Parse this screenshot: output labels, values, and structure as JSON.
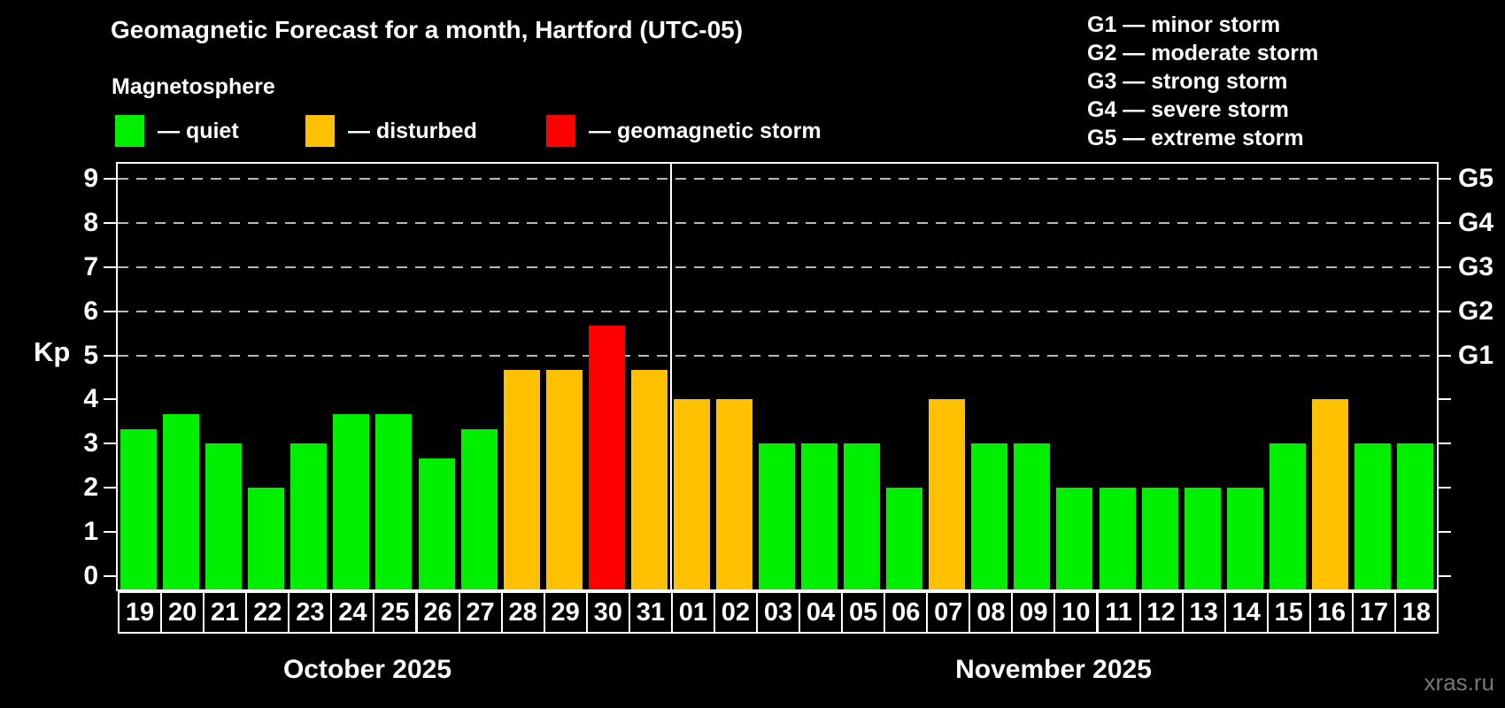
{
  "subtitle": "Magnetosphere",
  "legend": {
    "items": [
      {
        "id": "quiet",
        "label": "— quiet",
        "color": "#00f000"
      },
      {
        "id": "disturbed",
        "label": "— disturbed",
        "color": "#ffc000"
      },
      {
        "id": "storm",
        "label": "— geomagnetic storm",
        "color": "#ff0000"
      }
    ]
  },
  "g_legend": [
    "G1 — minor storm",
    "G2 — moderate storm",
    "G3 — strong storm",
    "G4 — severe storm",
    "G5 — extreme storm"
  ],
  "watermark": "xras.ru",
  "chart_data": {
    "type": "bar",
    "title": "Geomagnetic Forecast for a month, Hartford (UTC-05)",
    "ylabel": "Kp",
    "ylim": [
      0,
      9
    ],
    "y_ticks": [
      0,
      1,
      2,
      3,
      4,
      5,
      6,
      7,
      8,
      9
    ],
    "grid_levels": [
      5,
      6,
      7,
      8,
      9
    ],
    "grid_style": "dashed",
    "legend_position": "top-left",
    "g_scale": [
      {
        "label": "G1",
        "kp": 5
      },
      {
        "label": "G2",
        "kp": 6
      },
      {
        "label": "G3",
        "kp": 7
      },
      {
        "label": "G4",
        "kp": 8
      },
      {
        "label": "G5",
        "kp": 9
      }
    ],
    "status_colors": {
      "quiet": "#00f000",
      "disturbed": "#ffc000",
      "storm": "#ff0000"
    },
    "months": [
      {
        "label": "October 2025",
        "days": [
          {
            "day": "19",
            "kp": 3.33,
            "status": "quiet"
          },
          {
            "day": "20",
            "kp": 3.67,
            "status": "quiet"
          },
          {
            "day": "21",
            "kp": 3.0,
            "status": "quiet"
          },
          {
            "day": "22",
            "kp": 2.0,
            "status": "quiet"
          },
          {
            "day": "23",
            "kp": 3.0,
            "status": "quiet"
          },
          {
            "day": "24",
            "kp": 3.67,
            "status": "quiet"
          },
          {
            "day": "25",
            "kp": 3.67,
            "status": "quiet"
          },
          {
            "day": "26",
            "kp": 2.67,
            "status": "quiet"
          },
          {
            "day": "27",
            "kp": 3.33,
            "status": "quiet"
          },
          {
            "day": "28",
            "kp": 4.67,
            "status": "disturbed"
          },
          {
            "day": "29",
            "kp": 4.67,
            "status": "disturbed"
          },
          {
            "day": "30",
            "kp": 5.67,
            "status": "storm"
          },
          {
            "day": "31",
            "kp": 4.67,
            "status": "disturbed"
          }
        ]
      },
      {
        "label": "November 2025",
        "days": [
          {
            "day": "01",
            "kp": 4.0,
            "status": "disturbed"
          },
          {
            "day": "02",
            "kp": 4.0,
            "status": "disturbed"
          },
          {
            "day": "03",
            "kp": 3.0,
            "status": "quiet"
          },
          {
            "day": "04",
            "kp": 3.0,
            "status": "quiet"
          },
          {
            "day": "05",
            "kp": 3.0,
            "status": "quiet"
          },
          {
            "day": "06",
            "kp": 2.0,
            "status": "quiet"
          },
          {
            "day": "07",
            "kp": 4.0,
            "status": "disturbed"
          },
          {
            "day": "08",
            "kp": 3.0,
            "status": "quiet"
          },
          {
            "day": "09",
            "kp": 3.0,
            "status": "quiet"
          },
          {
            "day": "10",
            "kp": 2.0,
            "status": "quiet"
          },
          {
            "day": "11",
            "kp": 2.0,
            "status": "quiet"
          },
          {
            "day": "12",
            "kp": 2.0,
            "status": "quiet"
          },
          {
            "day": "13",
            "kp": 2.0,
            "status": "quiet"
          },
          {
            "day": "14",
            "kp": 2.0,
            "status": "quiet"
          },
          {
            "day": "15",
            "kp": 3.0,
            "status": "quiet"
          },
          {
            "day": "16",
            "kp": 4.0,
            "status": "disturbed"
          },
          {
            "day": "17",
            "kp": 3.0,
            "status": "quiet"
          },
          {
            "day": "18",
            "kp": 3.0,
            "status": "quiet"
          }
        ]
      }
    ]
  }
}
